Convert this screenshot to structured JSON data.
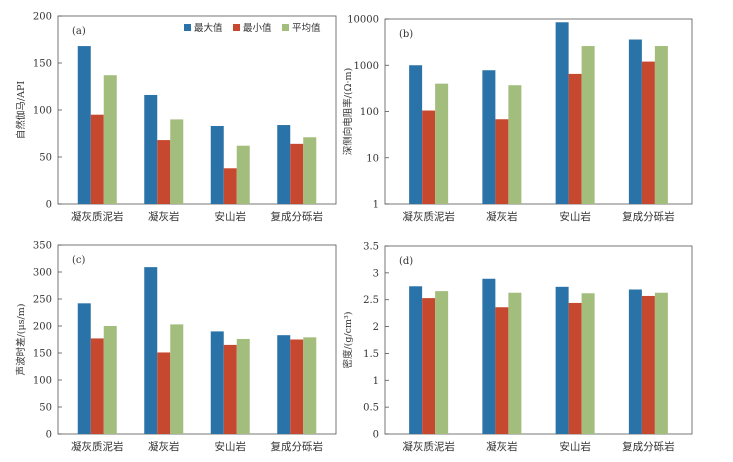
{
  "legend": {
    "items": [
      {
        "label": "最大值",
        "color": "#2a73a8"
      },
      {
        "label": "最小值",
        "color": "#c6492f"
      },
      {
        "label": "平均值",
        "color": "#a2bd7c"
      }
    ]
  },
  "chart_data": [
    {
      "id": "a",
      "type": "bar",
      "panel_label": "(a)",
      "ylabel": "自然伽马/API",
      "categories": [
        "凝灰质泥岩",
        "凝灰岩",
        "安山岩",
        "复成分砾岩"
      ],
      "yscale": "linear",
      "ylim": [
        0,
        200
      ],
      "yticks": [
        0,
        50,
        100,
        150,
        200
      ],
      "ytick_labels": [
        "0",
        "50",
        "100",
        "150",
        "200"
      ],
      "series": [
        {
          "name": "最大值",
          "values": [
            168,
            116,
            83,
            84
          ]
        },
        {
          "name": "最小值",
          "values": [
            95,
            68,
            38,
            64
          ]
        },
        {
          "name": "平均值",
          "values": [
            137,
            90,
            62,
            71
          ]
        }
      ],
      "legend": "top-right"
    },
    {
      "id": "b",
      "type": "bar",
      "panel_label": "(b)",
      "ylabel": "深侧向电阻率/(Ω·m)",
      "categories": [
        "凝灰质泥岩",
        "凝灰岩",
        "安山岩",
        "复成分砾岩"
      ],
      "yscale": "log",
      "ylim": [
        1,
        10000
      ],
      "yticks": [
        1,
        10,
        100,
        1000,
        10000
      ],
      "ytick_labels": [
        "1",
        "10",
        "100",
        "1000",
        "10000"
      ],
      "series": [
        {
          "name": "最大值",
          "values": [
            1000,
            780,
            8500,
            3600
          ]
        },
        {
          "name": "最小值",
          "values": [
            105,
            68,
            650,
            1200
          ]
        },
        {
          "name": "平均值",
          "values": [
            400,
            370,
            2600,
            2600
          ]
        }
      ]
    },
    {
      "id": "c",
      "type": "bar",
      "panel_label": "(c)",
      "ylabel": "声波时差/(μs/m)",
      "categories": [
        "凝灰质泥岩",
        "凝灰岩",
        "安山岩",
        "复成分砾岩"
      ],
      "yscale": "linear",
      "ylim": [
        0,
        350
      ],
      "yticks": [
        0,
        50,
        100,
        150,
        200,
        250,
        300,
        350
      ],
      "ytick_labels": [
        "0",
        "50",
        "100",
        "150",
        "200",
        "250",
        "300",
        "350"
      ],
      "series": [
        {
          "name": "最大值",
          "values": [
            242,
            309,
            190,
            183
          ]
        },
        {
          "name": "最小值",
          "values": [
            177,
            151,
            165,
            175
          ]
        },
        {
          "name": "平均值",
          "values": [
            200,
            203,
            176,
            179
          ]
        }
      ]
    },
    {
      "id": "d",
      "type": "bar",
      "panel_label": "(d)",
      "ylabel": "密度/(g/cm³)",
      "categories": [
        "凝灰质泥岩",
        "凝灰岩",
        "安山岩",
        "复成分砾岩"
      ],
      "yscale": "linear",
      "ylim": [
        0,
        3.5
      ],
      "yticks": [
        0,
        0.5,
        1,
        1.5,
        2,
        2.5,
        3,
        3.5
      ],
      "ytick_labels": [
        "0",
        "0.5",
        "1",
        "1.5",
        "2",
        "2.5",
        "3",
        "3.5"
      ],
      "series": [
        {
          "name": "最大值",
          "values": [
            2.75,
            2.89,
            2.74,
            2.69
          ]
        },
        {
          "name": "最小值",
          "values": [
            2.53,
            2.36,
            2.44,
            2.57
          ]
        },
        {
          "name": "平均值",
          "values": [
            2.66,
            2.63,
            2.62,
            2.63
          ]
        }
      ]
    }
  ]
}
